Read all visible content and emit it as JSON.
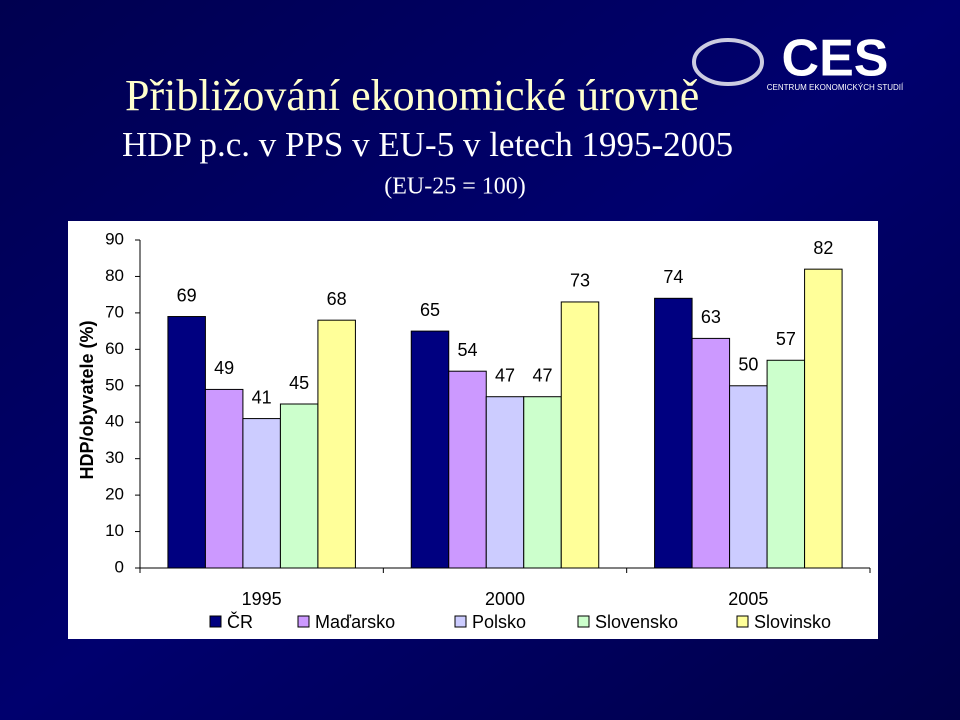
{
  "logo": {
    "text": "CES",
    "subtitle": "CENTRUM EKONOMICKÝCH STUDIÍ"
  },
  "chart_data": {
    "type": "bar",
    "title": "Přibližování ekonomické úrovně",
    "subtitle": "HDP p.c. v PPS v EU-5 v letech 1995-2005",
    "note": "(EU-25 = 100)",
    "y_label": "HDP/obyvatele (%)",
    "categories": [
      "1995",
      "2000",
      "2005"
    ],
    "series": [
      {
        "name": "ČR",
        "color": "#000080",
        "values": [
          69,
          65,
          74
        ]
      },
      {
        "name": "Maďarsko",
        "color": "#cc99ff",
        "values": [
          49,
          54,
          63
        ]
      },
      {
        "name": "Polsko",
        "color": "#ccccff",
        "values": [
          41,
          47,
          50
        ]
      },
      {
        "name": "Slovensko",
        "color": "#ccffcc",
        "values": [
          45,
          47,
          57
        ]
      },
      {
        "name": "Slovinsko",
        "color": "#ffff99",
        "values": [
          68,
          73,
          82
        ]
      }
    ],
    "ylim": [
      0,
      90
    ],
    "yticks": [
      0,
      10,
      20,
      30,
      40,
      50,
      60,
      70,
      80,
      90
    ],
    "grid": false,
    "legend": "bottom"
  }
}
